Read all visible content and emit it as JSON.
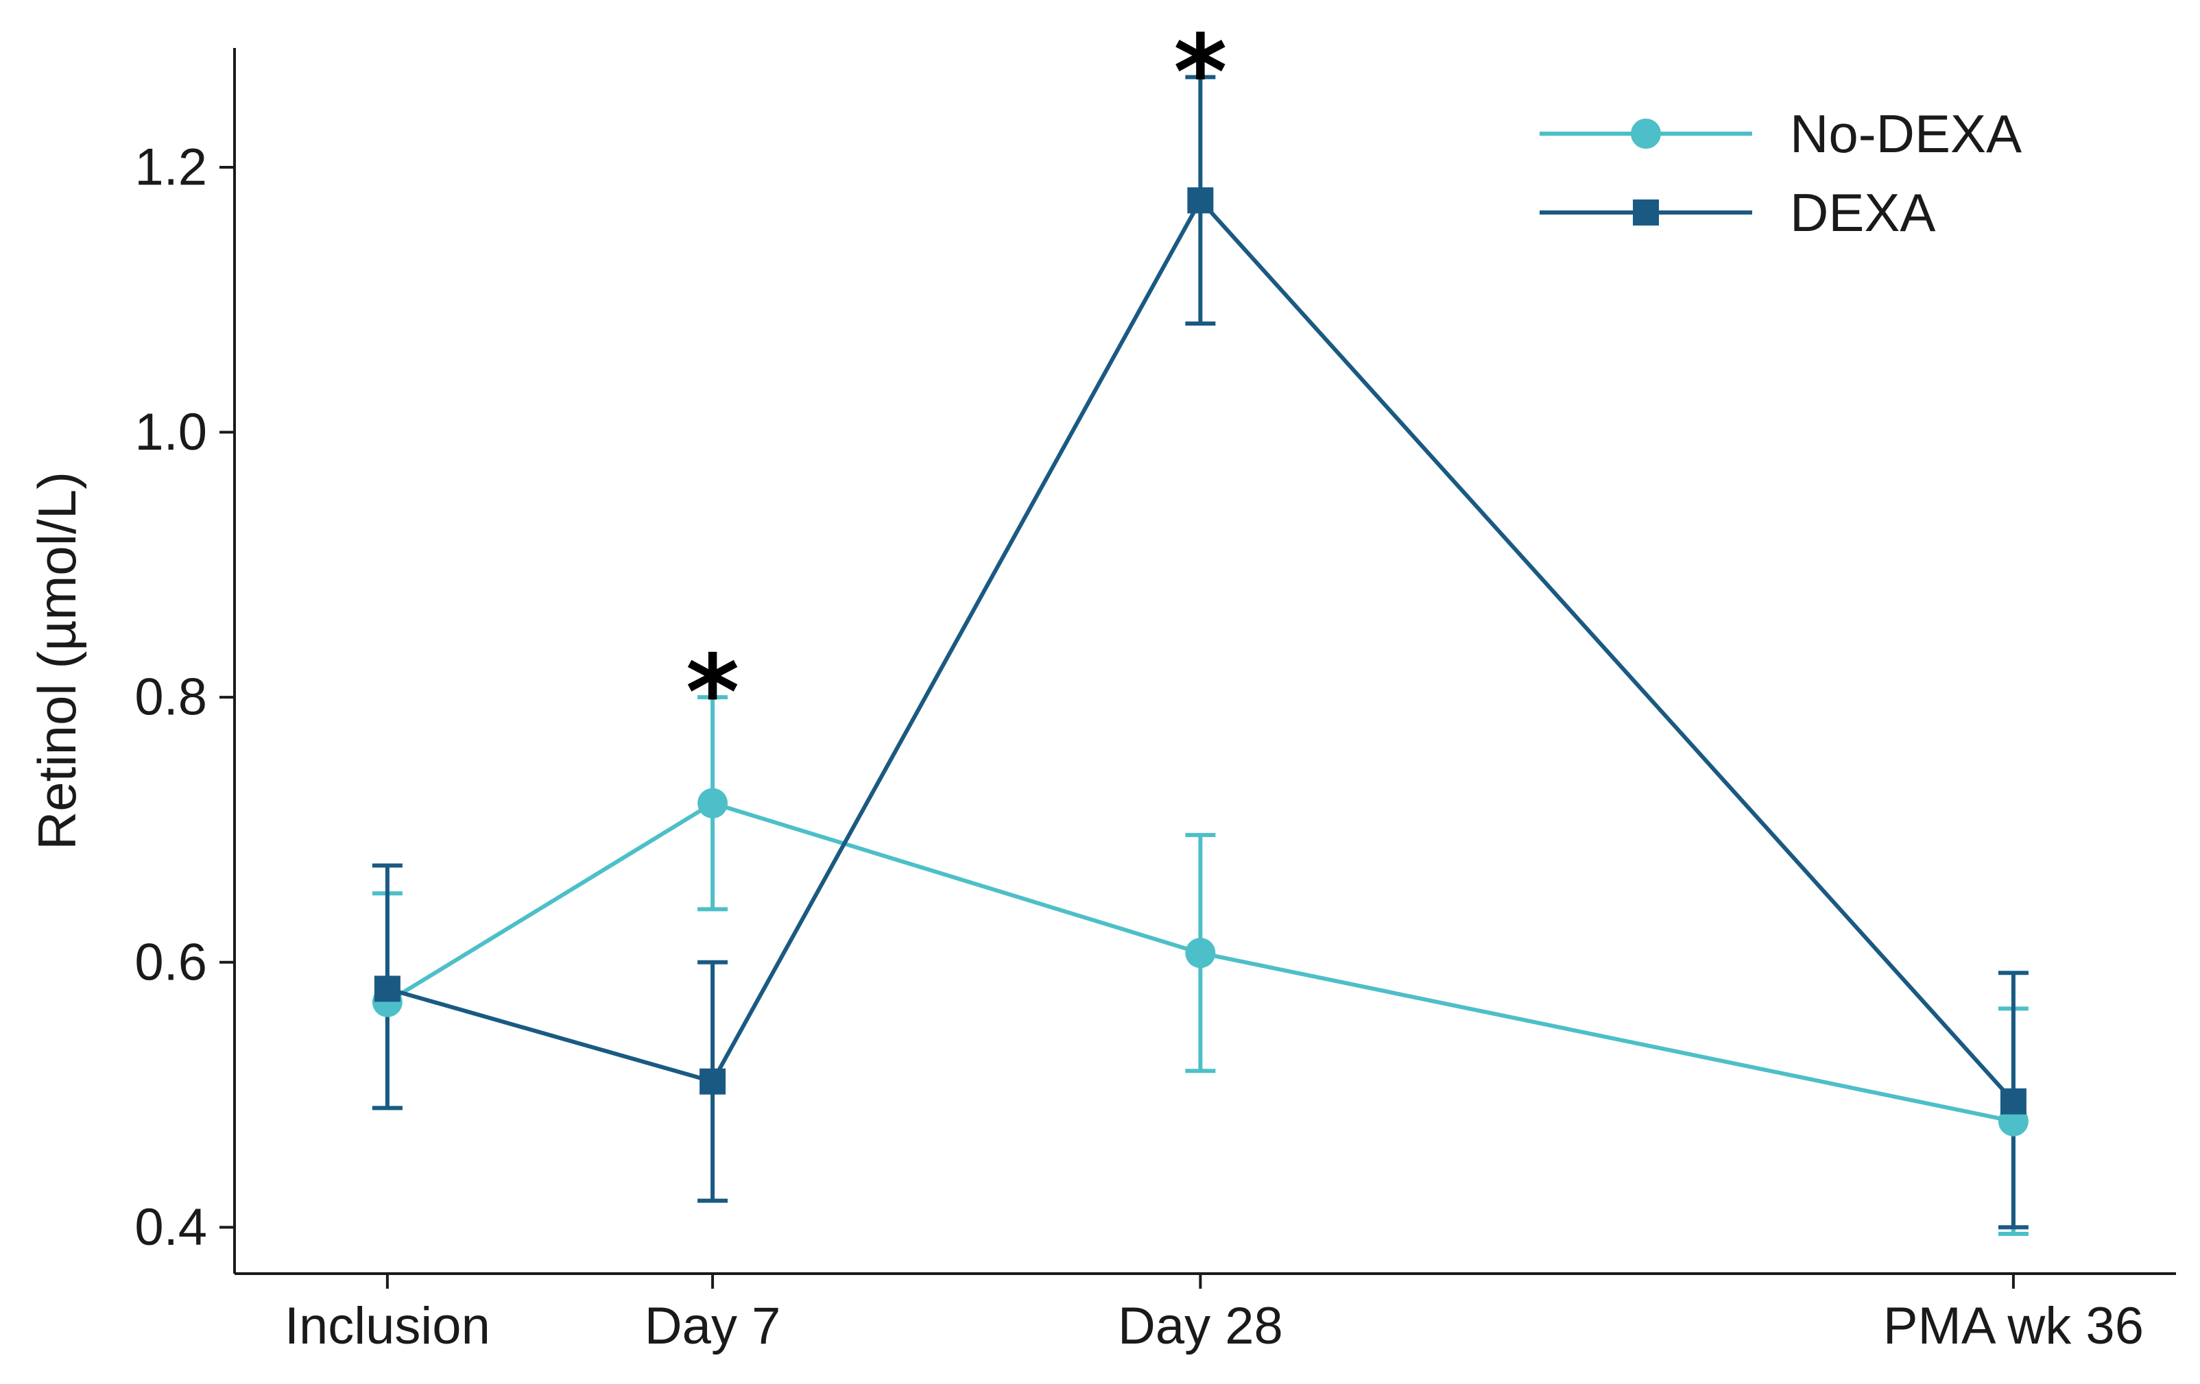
{
  "chart_data": {
    "type": "line",
    "title": "",
    "xlabel": "",
    "ylabel": "Retinol (µmol/L)",
    "categories": [
      "Inclusion",
      "Day 7",
      "Day 28",
      "PMA wk 36"
    ],
    "x": [
      0,
      1,
      2.5,
      5
    ],
    "xlim": [
      -0.47,
      5.5
    ],
    "ylim": [
      0.365,
      1.29
    ],
    "yticks": [
      0.4,
      0.6,
      0.8,
      1.0,
      1.2
    ],
    "ytick_labels": [
      "0.4",
      "0.6",
      "0.8",
      "1.0",
      "1.2"
    ],
    "grid": false,
    "legend_position": "top-right",
    "series": [
      {
        "name": "No-DEXA",
        "color": "#4dbfc8",
        "marker": "circle",
        "values": [
          0.57,
          0.72,
          0.607,
          0.48
        ],
        "error_low": [
          0.49,
          0.64,
          0.518,
          0.395
        ],
        "error_high": [
          0.652,
          0.8,
          0.696,
          0.565
        ]
      },
      {
        "name": "DEXA",
        "color": "#1a5a82",
        "marker": "square",
        "values": [
          0.58,
          0.51,
          1.175,
          0.495
        ],
        "error_low": [
          0.49,
          0.42,
          1.082,
          0.4
        ],
        "error_high": [
          0.673,
          0.6,
          1.268,
          0.592
        ]
      }
    ],
    "annotations": [
      {
        "text": "*",
        "x": 1,
        "y": 0.8
      },
      {
        "text": "*",
        "x": 2.5,
        "y": 1.268
      }
    ]
  }
}
